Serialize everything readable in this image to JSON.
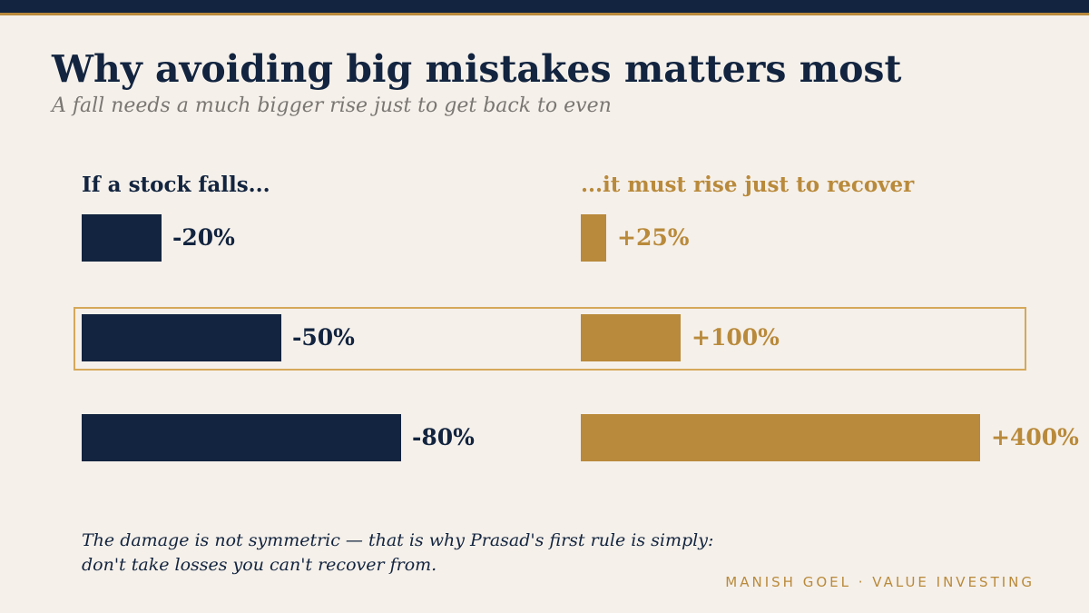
{
  "title": "Why avoiding big mistakes matters most",
  "subtitle": "A fall needs a much bigger rise just to get back to even",
  "colors": {
    "navy": "#12243f",
    "gold": "#b98a3b",
    "highlight_border": "#d5a85a",
    "background": "#f5f0ea"
  },
  "chart_data": {
    "type": "bar",
    "left_heading": "If a stock falls...",
    "right_heading": "...it must rise just to recover",
    "rows": [
      {
        "fall": 20,
        "fall_label": "-20%",
        "rise": 25,
        "rise_label": "+25%",
        "highlighted": false
      },
      {
        "fall": 50,
        "fall_label": "-50%",
        "rise": 100,
        "rise_label": "+100%",
        "highlighted": true
      },
      {
        "fall": 80,
        "fall_label": "-80%",
        "rise": 400,
        "rise_label": "+400%",
        "highlighted": false
      }
    ],
    "fall_max": 100,
    "rise_max": 400
  },
  "note": {
    "line1": "The damage is not symmetric — that is why Prasad's first rule is simply:",
    "line2": "don't take losses you can't recover from."
  },
  "credit": "MANISH GOEL · VALUE INVESTING"
}
